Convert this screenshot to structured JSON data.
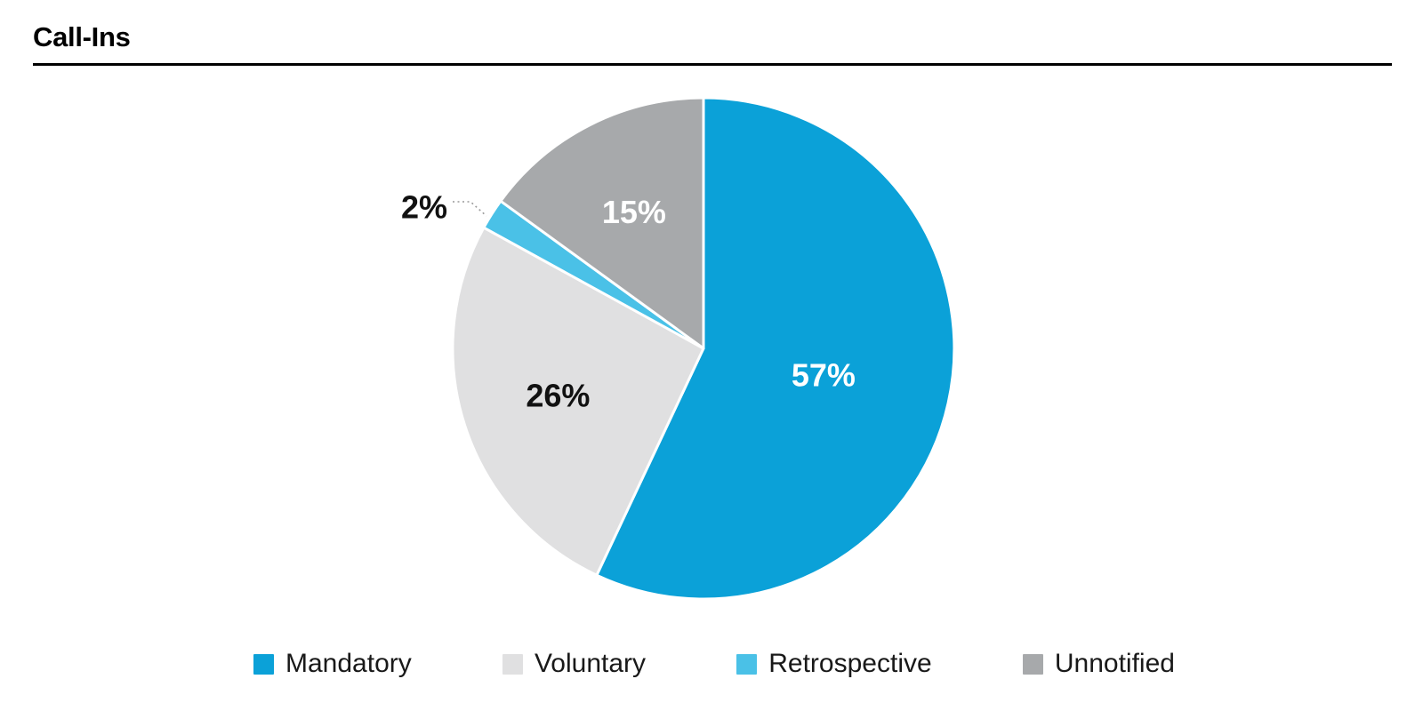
{
  "header": {
    "title": "Call-Ins"
  },
  "chart_data": {
    "type": "pie",
    "title": "Call-Ins",
    "unit": "percent",
    "clockwise": true,
    "start_angle_deg": 0,
    "legend_position": "bottom",
    "categories": [
      "Mandatory",
      "Voluntary",
      "Retrospective",
      "Unnotified"
    ],
    "values": [
      57,
      26,
      2,
      15
    ],
    "labels": [
      "57%",
      "26%",
      "2%",
      "15%"
    ],
    "colors": [
      "#0BA1D8",
      "#E0E0E1",
      "#4AC1E7",
      "#A7A9AB"
    ],
    "label_colors": [
      "#FFFFFF",
      "#111111",
      "#111111",
      "#FFFFFF"
    ],
    "label_placement": [
      "inside",
      "inside",
      "outside",
      "inside"
    ],
    "separator_color": "#FFFFFF",
    "leader_line_color": "#9A9A9A"
  }
}
